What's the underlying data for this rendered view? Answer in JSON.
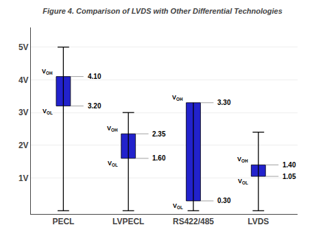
{
  "chart_data": {
    "type": "bar",
    "title": "Figure 4. Comparison of LVDS with Other Differential Technologies",
    "categories": [
      "PECL",
      "LVPECL",
      "RS422/485",
      "LVDS"
    ],
    "series": [
      {
        "name": "VOH",
        "values": [
          4.1,
          2.35,
          3.3,
          1.4
        ],
        "value_labels": [
          "4.10",
          "2.35",
          "3.30",
          "1.40"
        ]
      },
      {
        "name": "VOL",
        "values": [
          3.2,
          1.6,
          0.3,
          1.05
        ],
        "value_labels": [
          "3.20",
          "1.60",
          "0.30",
          "1.05"
        ]
      }
    ],
    "whisker_top": [
      5.0,
      3.0,
      null,
      2.4
    ],
    "whisker_bottom": [
      0.0,
      0.0,
      0.0,
      0.0
    ],
    "color": "#2222cc",
    "ylim": [
      -0.1,
      5.6
    ],
    "yticks": [
      {
        "value": 1,
        "label": "1V"
      },
      {
        "value": 2,
        "label": "2V"
      },
      {
        "value": 3,
        "label": "3V"
      },
      {
        "value": 4,
        "label": "4V"
      },
      {
        "value": 5,
        "label": "5V"
      }
    ],
    "grid": true,
    "data_labels": true
  }
}
